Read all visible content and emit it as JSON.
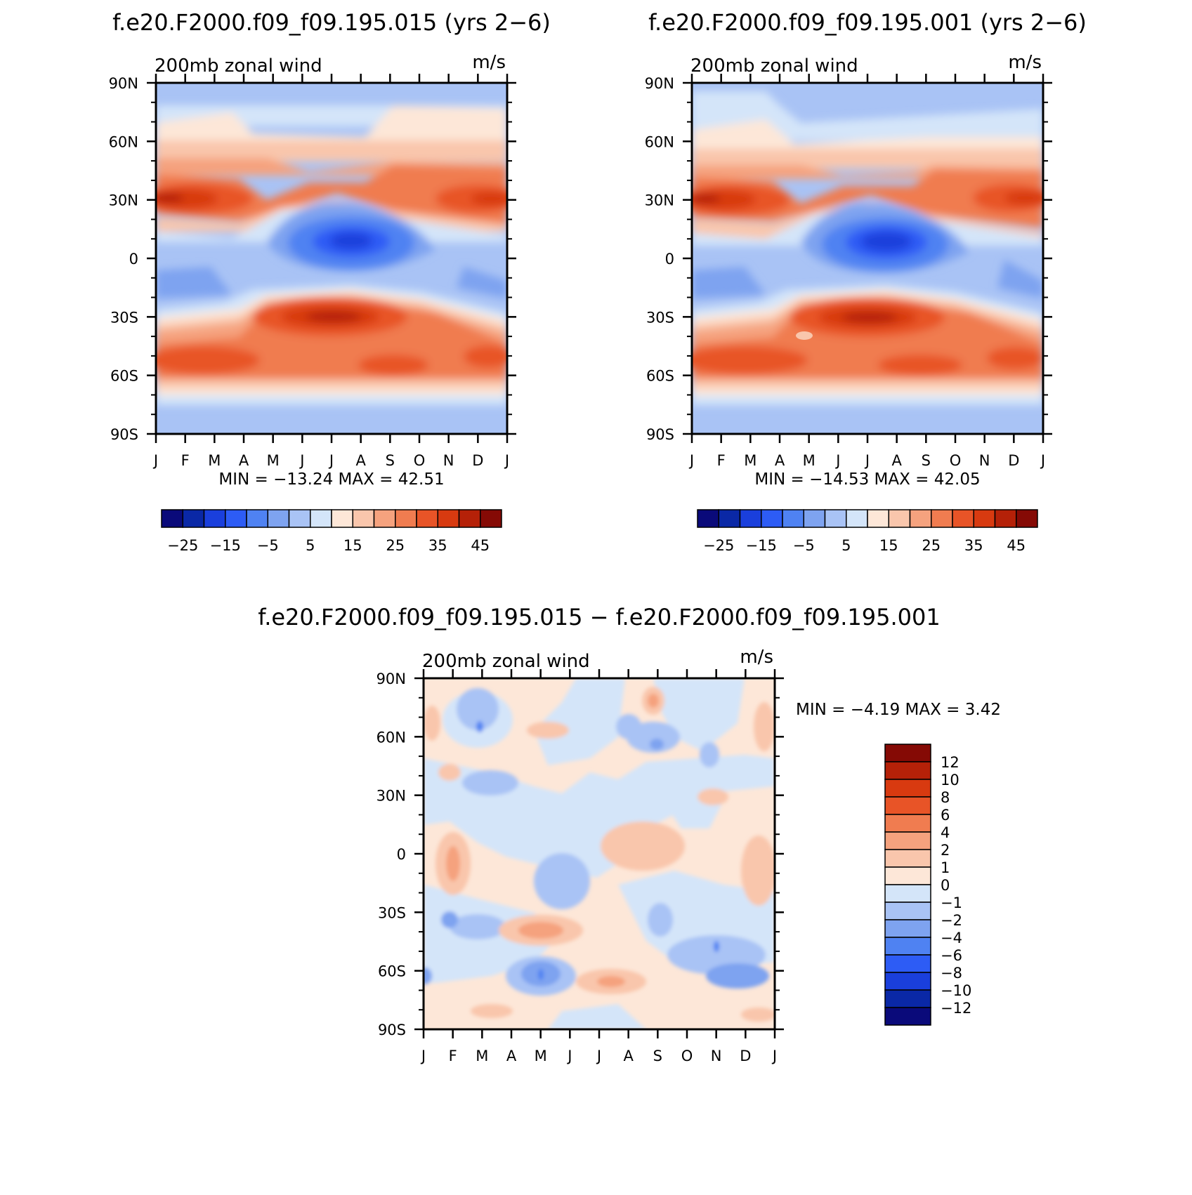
{
  "chart_data": [
    {
      "type": "heatmap",
      "title": "f.e20.F2000.f09_f09.195.015 (yrs 2−6)",
      "left_label": "200mb  zonal  wind",
      "units": "m/s",
      "x_ticks": [
        "J",
        "F",
        "M",
        "A",
        "M",
        "J",
        "J",
        "A",
        "S",
        "O",
        "N",
        "D",
        "J"
      ],
      "y_ticks": [
        "90N",
        "60N",
        "30N",
        "0",
        "30S",
        "60S",
        "90S"
      ],
      "ylim": [
        -90,
        90
      ],
      "min_max": "MIN  =  −13.24  MAX  =    42.51",
      "colorbar": {
        "orientation": "horizontal",
        "labels": [
          "−25",
          "−15",
          "−5",
          "5",
          "15",
          "25",
          "35",
          "45"
        ],
        "colors": [
          "#0a0a7a",
          "#0a28a6",
          "#1a3fdc",
          "#2d5cf5",
          "#4f82f2",
          "#7ea3f0",
          "#a9c3f5",
          "#d4e5f9",
          "#fde7d8",
          "#f9c6ac",
          "#f5a27e",
          "#f07c50",
          "#e85427",
          "#d83a10",
          "#b52108",
          "#850a05"
        ]
      }
    },
    {
      "type": "heatmap",
      "title": "f.e20.F2000.f09_f09.195.001 (yrs 2−6)",
      "left_label": "200mb  zonal  wind",
      "units": "m/s",
      "x_ticks": [
        "J",
        "F",
        "M",
        "A",
        "M",
        "J",
        "J",
        "A",
        "S",
        "O",
        "N",
        "D",
        "J"
      ],
      "y_ticks": [
        "90N",
        "60N",
        "30N",
        "0",
        "30S",
        "60S",
        "90S"
      ],
      "ylim": [
        -90,
        90
      ],
      "min_max": "MIN  =  −14.53  MAX  =    42.05",
      "colorbar": {
        "orientation": "horizontal",
        "labels": [
          "−25",
          "−15",
          "−5",
          "5",
          "15",
          "25",
          "35",
          "45"
        ],
        "colors": [
          "#0a0a7a",
          "#0a28a6",
          "#1a3fdc",
          "#2d5cf5",
          "#4f82f2",
          "#7ea3f0",
          "#a9c3f5",
          "#d4e5f9",
          "#fde7d8",
          "#f9c6ac",
          "#f5a27e",
          "#f07c50",
          "#e85427",
          "#d83a10",
          "#b52108",
          "#850a05"
        ]
      }
    },
    {
      "type": "heatmap",
      "title": "f.e20.F2000.f09_f09.195.015 − f.e20.F2000.f09_f09.195.001",
      "left_label": "200mb  zonal  wind",
      "units": "m/s",
      "x_ticks": [
        "J",
        "F",
        "M",
        "A",
        "M",
        "J",
        "J",
        "A",
        "S",
        "O",
        "N",
        "D",
        "J"
      ],
      "y_ticks": [
        "90N",
        "60N",
        "30N",
        "0",
        "30S",
        "60S",
        "90S"
      ],
      "ylim": [
        -90,
        90
      ],
      "min_max": "MIN  =    −4.19  MAX  =     3.42",
      "colorbar": {
        "orientation": "vertical",
        "labels": [
          "12",
          "10",
          "8",
          "6",
          "4",
          "2",
          "1",
          "0",
          "−1",
          "−2",
          "−4",
          "−6",
          "−8",
          "−10",
          "−12"
        ],
        "colors": [
          "#850a05",
          "#b52108",
          "#d83a10",
          "#e85427",
          "#f07c50",
          "#f5a27e",
          "#f9c6ac",
          "#fde7d8",
          "#d4e5f9",
          "#a9c3f5",
          "#7ea3f0",
          "#4f82f2",
          "#2d5cf5",
          "#1a3fdc",
          "#0a28a6",
          "#0a0a7a"
        ]
      }
    }
  ]
}
